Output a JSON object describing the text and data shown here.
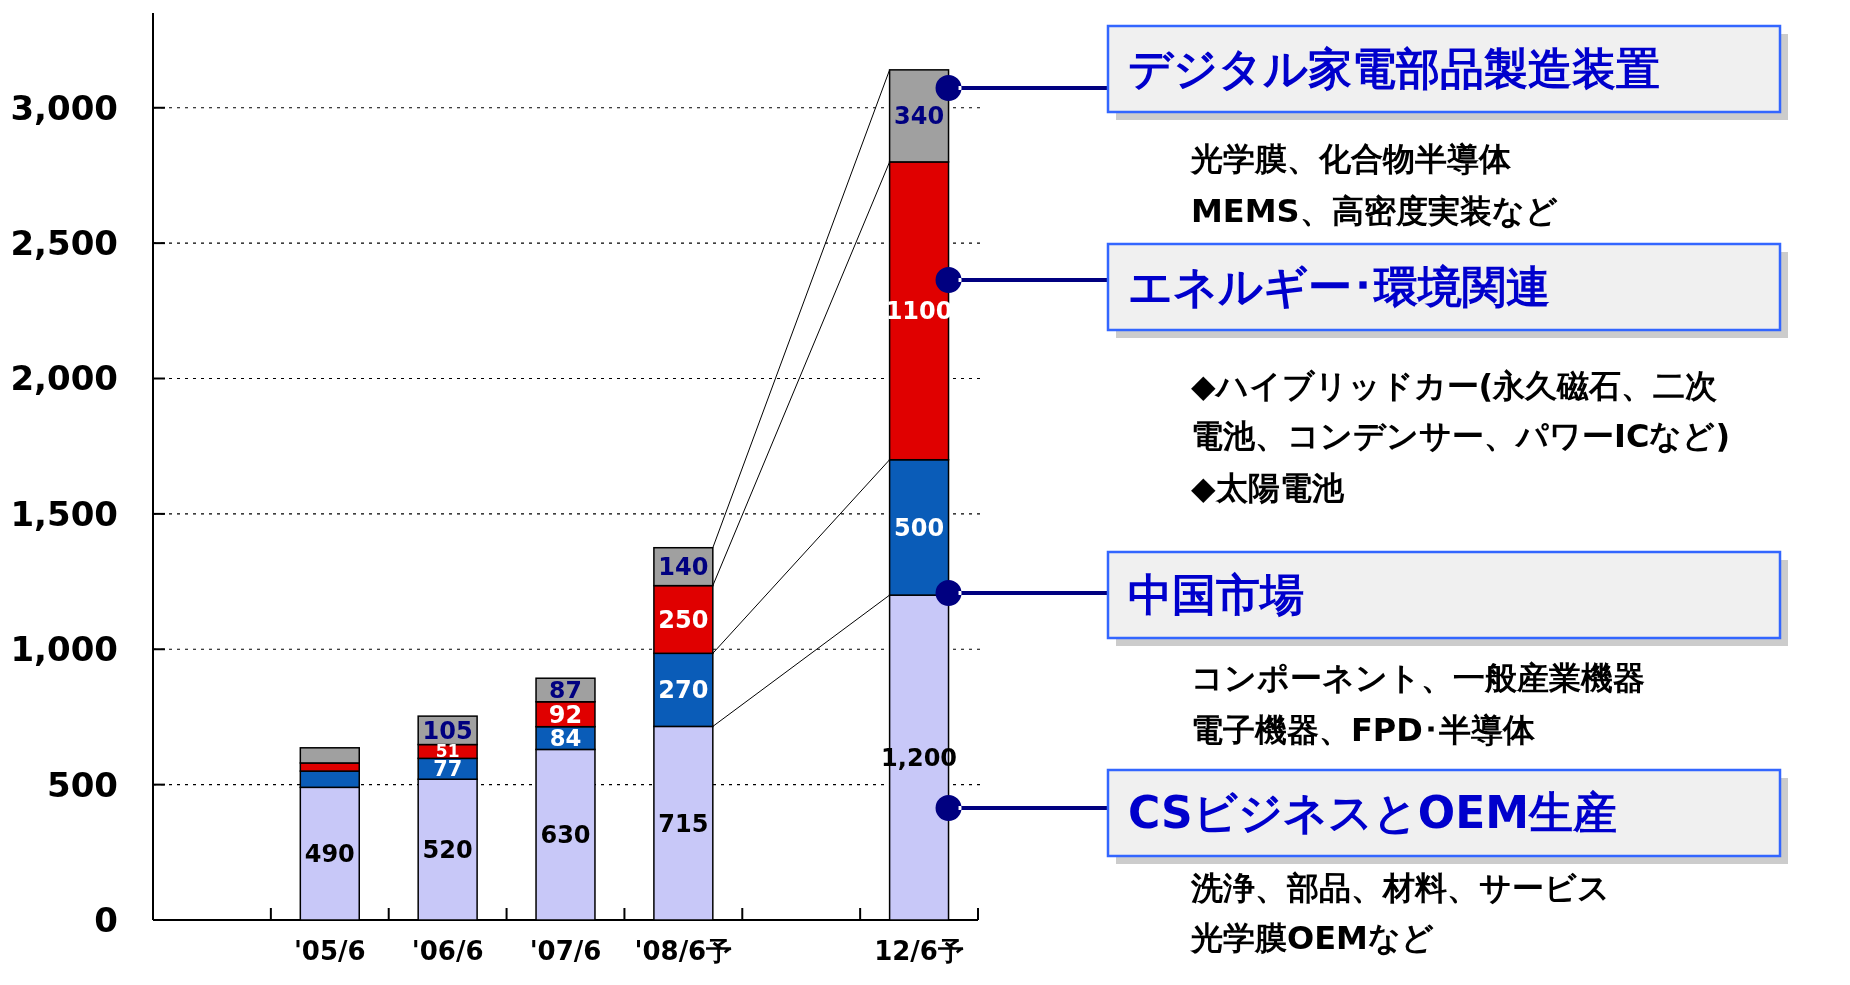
{
  "chart_data": {
    "type": "bar",
    "stacked": true,
    "categories": [
      null,
      "'05/6",
      "'06/6",
      "'07/6",
      "'08/6予",
      null,
      "12/6予"
    ],
    "series": [
      {
        "color": "#c8c8f8",
        "values": [
          null,
          490,
          520,
          630,
          715,
          null,
          1200
        ],
        "value_labels": [
          null,
          "490",
          "520",
          "630",
          "715",
          null,
          "1,200"
        ]
      },
      {
        "color": "#0a5cb8",
        "values": [
          null,
          60,
          77,
          84,
          270,
          null,
          500
        ],
        "value_labels": [
          null,
          null,
          "77",
          "84",
          "270",
          null,
          "500"
        ]
      },
      {
        "color": "#e00000",
        "values": [
          null,
          30,
          51,
          92,
          250,
          null,
          1100
        ],
        "value_labels": [
          null,
          null,
          "51",
          "92",
          "250",
          null,
          "1100"
        ]
      },
      {
        "color": "#a0a0a0",
        "values": [
          null,
          56,
          105,
          87,
          140,
          null,
          340
        ],
        "value_labels": [
          null,
          null,
          "105",
          "87",
          "140",
          null,
          "340"
        ]
      }
    ],
    "ylim": [
      0,
      3350
    ],
    "yticks": [
      {
        "value": 0,
        "label": "0"
      },
      {
        "value": 500,
        "label": "500"
      },
      {
        "value": 1000,
        "label": "1,000"
      },
      {
        "value": 1500,
        "label": "1,500"
      },
      {
        "value": 2000,
        "label": "2,000"
      },
      {
        "value": 2500,
        "label": "2,500"
      },
      {
        "value": 3000,
        "label": "3,000"
      }
    ],
    "grid": "y",
    "annotations": [
      "デジタル家電部品製造装置",
      "光学膜、化合物半導体",
      "MEMS、高密度実装など",
      "エネルギー･環境関連",
      "◆ハイブリッドカー(永久磁石、二次",
      "電池、コンデンサー、パワーICなど)",
      "◆太陽電池",
      "中国市場",
      "コンポーネント、一般産業機器",
      "電子機器、FPD･半導体",
      "CSビジネスとOEM生産",
      "洗浄、部品、材料、サービス",
      "光学膜OEMなど"
    ]
  }
}
